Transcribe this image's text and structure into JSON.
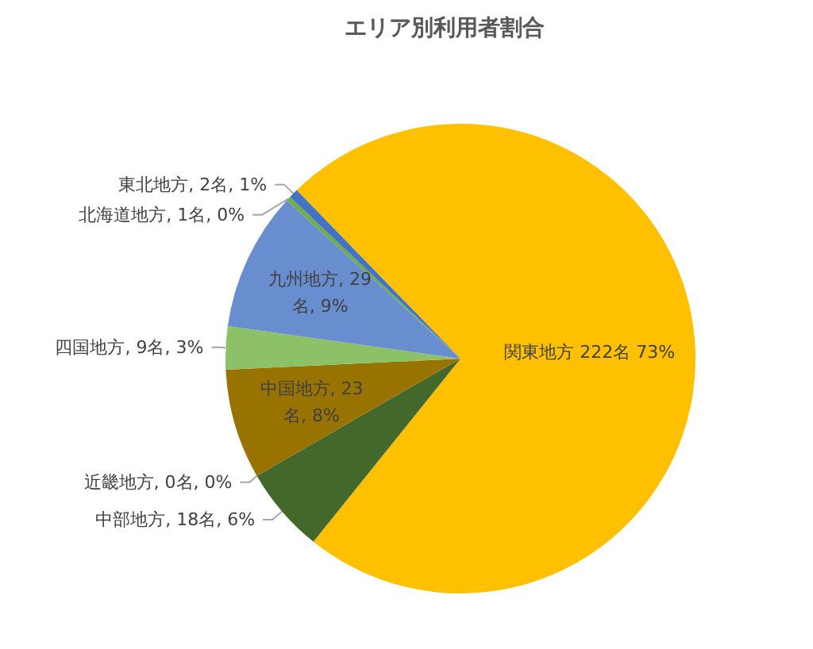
{
  "chart_data": {
    "type": "pie",
    "title": "エリア別利用者割合",
    "categories": [
      "北海道地方",
      "東北地方",
      "関東地方",
      "中部地方",
      "近畿地方",
      "中国地方",
      "四国地方",
      "九州地方"
    ],
    "values": [
      1,
      2,
      222,
      18,
      0,
      23,
      9,
      29
    ],
    "colors": [
      "#70ad47",
      "#4472c4",
      "#ffc000",
      "#43682b",
      null,
      "#997300",
      "#8cc168",
      "#698ed0"
    ],
    "value_labels": [
      ", 1名, 0%",
      ", 2名, 1%",
      " 222名 73%",
      ", 18名, 6%",
      ", 0名, 0%",
      ", 23名, 8%",
      ", 9名, 3%",
      ", 29名, 9%"
    ]
  }
}
